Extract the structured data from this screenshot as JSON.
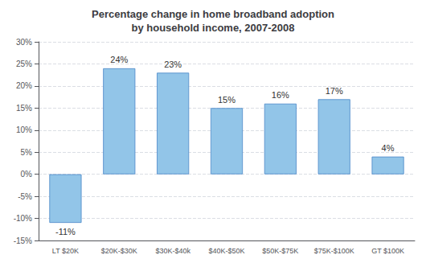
{
  "chart_data": {
    "type": "bar",
    "title": "Percentage change in home broadband adoption\nby household income, 2007-2008",
    "categories": [
      "LT $20K",
      "$20K-$30K",
      "$30K-$40k",
      "$40K-$50K",
      "$50K-$75K",
      "$75K-$100K",
      "GT $100K"
    ],
    "values": [
      -11,
      24,
      23,
      15,
      16,
      17,
      4
    ],
    "value_labels": [
      "-11%",
      "24%",
      "23%",
      "15%",
      "16%",
      "17%",
      "4%"
    ],
    "data_labels": true,
    "color": "#92C5E8",
    "ylim": [
      -15,
      30
    ],
    "yticks": [
      {
        "value": -15,
        "label": "-15%"
      },
      {
        "value": -10,
        "label": "-10%"
      },
      {
        "value": -5,
        "label": "-5%"
      },
      {
        "value": 0,
        "label": "0%"
      },
      {
        "value": 5,
        "label": "5%"
      },
      {
        "value": 10,
        "label": "10%"
      },
      {
        "value": 15,
        "label": "15%"
      },
      {
        "value": 20,
        "label": "20%"
      },
      {
        "value": 25,
        "label": "25%"
      },
      {
        "value": 30,
        "label": "30%"
      }
    ],
    "grid": true
  }
}
